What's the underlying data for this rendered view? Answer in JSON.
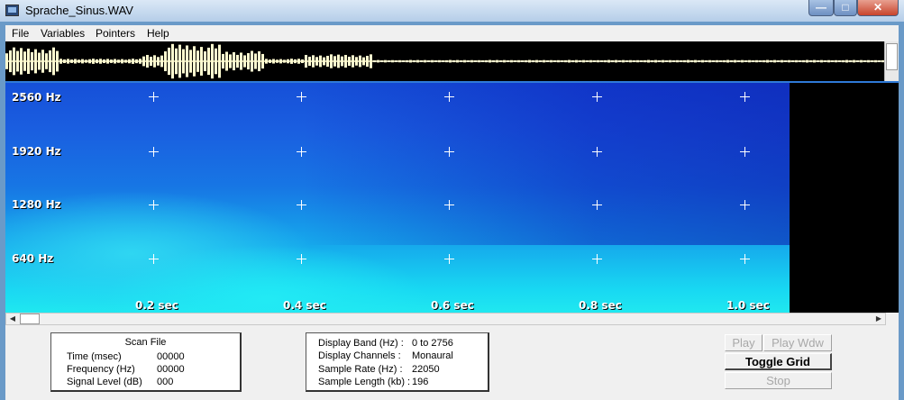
{
  "window": {
    "title": "Sprache_Sinus.WAV",
    "minimize": "—",
    "maximize": "□",
    "close": "✕"
  },
  "menu": [
    "File",
    "Variables",
    "Pointers",
    "Help"
  ],
  "spectrogram": {
    "freq_labels": [
      "2560 Hz",
      "1920 Hz",
      "1280 Hz",
      "640 Hz"
    ],
    "time_labels": [
      "0.2 sec",
      "0.4 sec",
      "0.6 sec",
      "0.8 sec",
      "1.0 sec"
    ],
    "grid_visible": true
  },
  "scan_file": {
    "title": "Scan File",
    "rows": [
      {
        "label": "Time (msec)",
        "value": "00000"
      },
      {
        "label": "Frequency (Hz)",
        "value": "00000"
      },
      {
        "label": "Signal Level (dB)",
        "value": "000"
      }
    ]
  },
  "display_info": {
    "rows": [
      {
        "label": "Display Band (Hz) :",
        "value": "0 to 2756"
      },
      {
        "label": "Display Channels :",
        "value": "Monaural"
      },
      {
        "label": "Sample Rate (Hz) :",
        "value": "22050"
      },
      {
        "label": "Sample Length (kb) :",
        "value": "196"
      }
    ]
  },
  "buttons": {
    "play": "Play",
    "play_wdw": "Play Wdw",
    "toggle_grid": "Toggle Grid",
    "stop": "Stop"
  },
  "colors": {
    "waveform": "#fffbd0",
    "grid": "#ffffff"
  }
}
